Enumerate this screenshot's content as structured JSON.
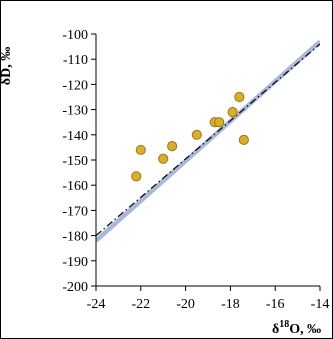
{
  "chart_data": {
    "type": "scatter",
    "title": "",
    "xlabel_html": [
      "δ",
      "18",
      "O, ‰"
    ],
    "ylabel": "δD, ‰",
    "xlim": [
      -24,
      -14
    ],
    "ylim": [
      -200,
      -100
    ],
    "x_ticks": [
      -24,
      -22,
      -20,
      -18,
      -16,
      -14
    ],
    "y_ticks": [
      -100,
      -110,
      -120,
      -130,
      -140,
      -150,
      -160,
      -170,
      -180,
      -190,
      -200
    ],
    "grid": false,
    "legend": "none",
    "series": [
      {
        "kind": "points",
        "color": "#D9AE2E",
        "edge_color": "#9C7A14",
        "x": [
          -22.2,
          -22.0,
          -21.0,
          -20.6,
          -19.5,
          -18.7,
          -18.5,
          -17.9,
          -17.6,
          -17.4
        ],
        "y": [
          -156.5,
          -146.0,
          -149.5,
          -144.5,
          -140.0,
          -135.0,
          -135.0,
          -131.0,
          -125.0,
          -142.0
        ]
      },
      {
        "kind": "line",
        "style": "solid",
        "color": "#A9B8D8",
        "x": [
          -24,
          -14
        ],
        "y": [
          -182,
          -103
        ]
      },
      {
        "kind": "line",
        "style": "dash-dot",
        "color": "#000000",
        "x": [
          -24,
          -14
        ],
        "y": [
          -180,
          -104
        ]
      }
    ]
  }
}
